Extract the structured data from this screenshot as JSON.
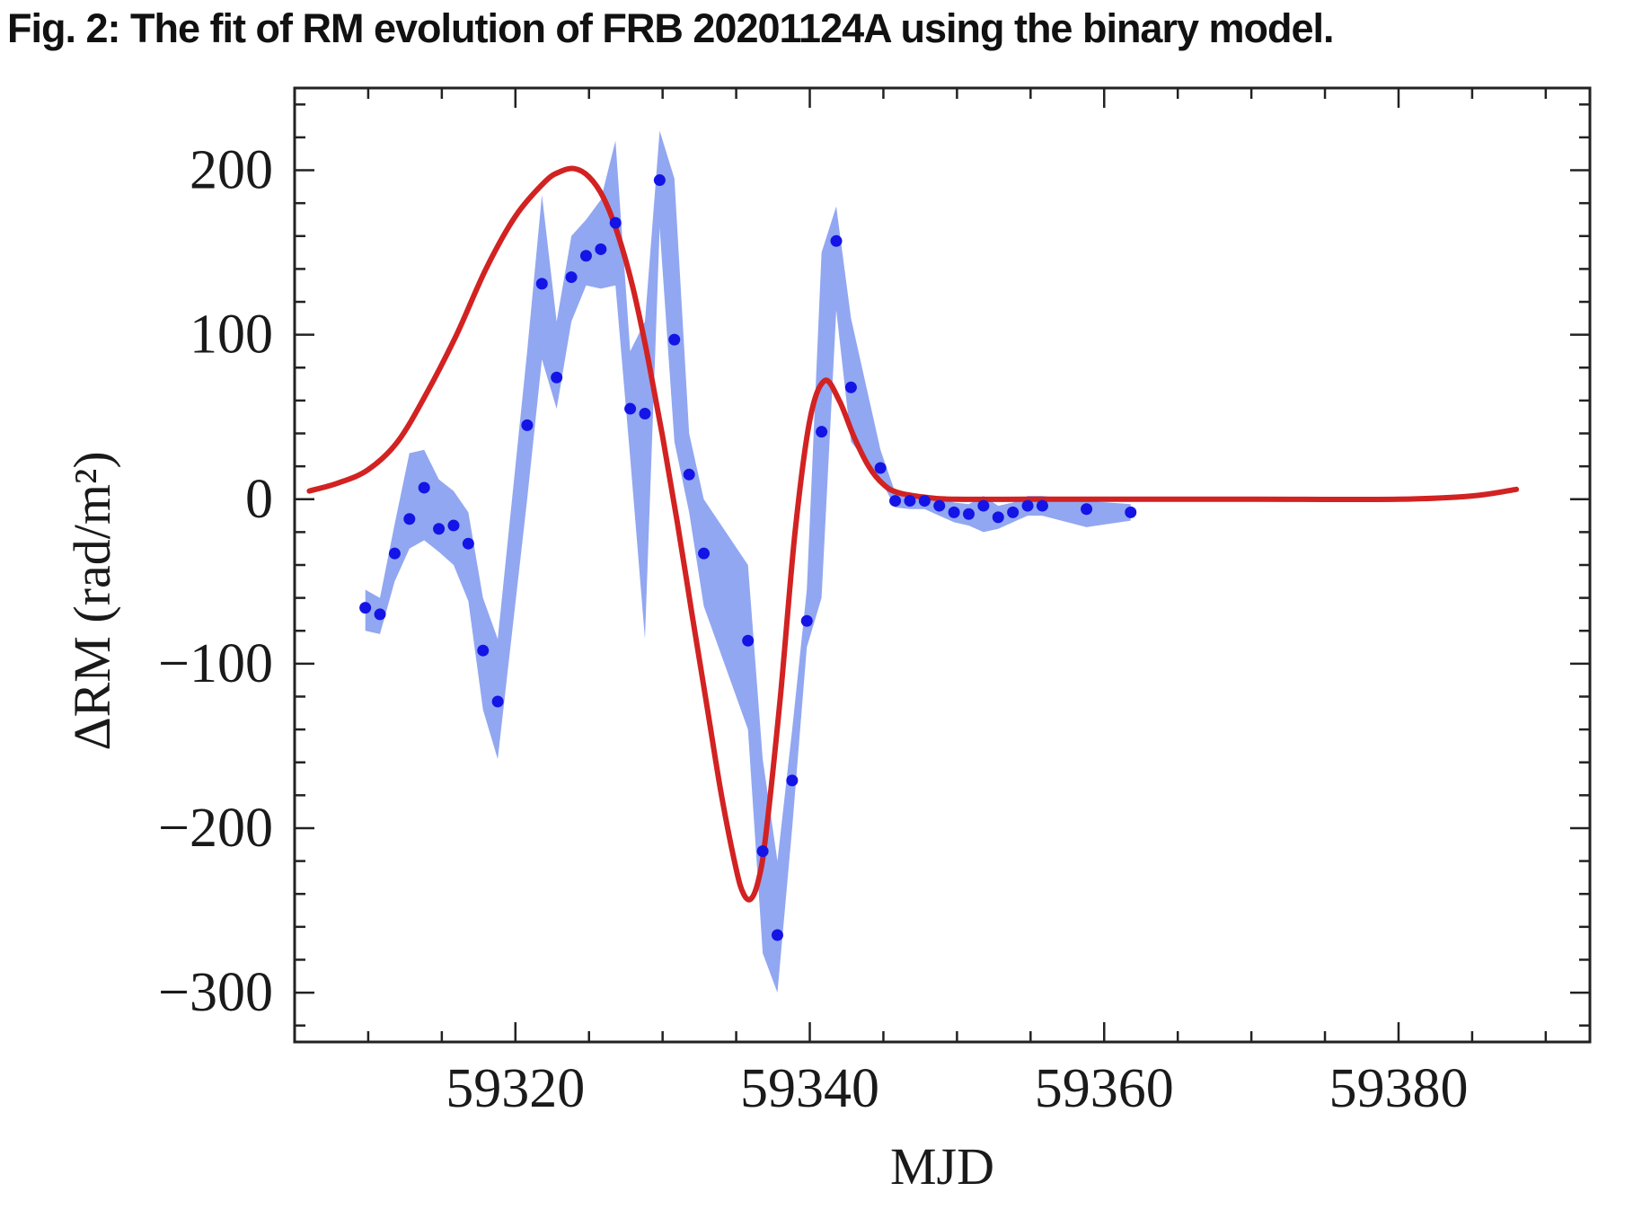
{
  "caption": "Fig. 2: The fit of RM evolution of FRB 20201124A using the binary model.",
  "colors": {
    "points": "#1414e6",
    "band": "#8ca2f0",
    "fit": "#d22222",
    "frame": "#222222",
    "caption": "#111111"
  },
  "chart_data": {
    "type": "scatter",
    "title": "",
    "xlabel": "MJD",
    "ylabel": "ΔRM (rad/m²)",
    "xlim": [
      59305,
      59393
    ],
    "ylim": [
      -330,
      250
    ],
    "xticks": [
      59320,
      59340,
      59360,
      59380
    ],
    "yticks": [
      200,
      100,
      0,
      -100,
      -200,
      -300
    ],
    "xtick_labels": [
      "59320",
      "59340",
      "59360",
      "59380"
    ],
    "ytick_labels": [
      "200",
      "100",
      "0",
      "−100",
      "−200",
      "−300"
    ],
    "grid": false,
    "legend": "none",
    "series": [
      {
        "kind": "points",
        "x": [
          59309.8,
          59310.8,
          59311.8,
          59312.8,
          59313.8,
          59314.8,
          59315.8,
          59316.8,
          59317.8,
          59318.8,
          59320.8,
          59321.8,
          59322.8,
          59323.8,
          59324.8,
          59325.8,
          59326.8,
          59327.8,
          59328.8,
          59329.8,
          59330.8,
          59331.8,
          59332.8,
          59335.8,
          59336.8,
          59337.8,
          59338.8,
          59339.8,
          59340.8,
          59341.8,
          59342.8,
          59344.8,
          59345.8,
          59346.8,
          59347.8,
          59348.8,
          59349.8,
          59350.8,
          59351.8,
          59352.8,
          59353.8,
          59354.8,
          59355.8,
          59358.8,
          59361.8
        ],
        "y": [
          -66,
          -70,
          -33,
          -12,
          7,
          -18,
          -16,
          -27,
          -92,
          -123,
          45,
          131,
          74,
          135,
          148,
          152,
          168,
          55,
          52,
          194,
          97,
          15,
          -33,
          -86,
          -214,
          -265,
          -171,
          -74,
          41,
          157,
          68,
          19,
          -1,
          -1,
          -1,
          -4,
          -8,
          -9,
          -4,
          -11,
          -8,
          -4,
          -4,
          -6,
          -8
        ]
      },
      {
        "kind": "band",
        "x": [
          59309.8,
          59310.8,
          59311.8,
          59312.8,
          59313.8,
          59314.8,
          59315.8,
          59316.8,
          59317.8,
          59318.8,
          59320.8,
          59321.8,
          59322.8,
          59323.8,
          59324.8,
          59325.8,
          59326.8,
          59327.8,
          59328.8,
          59329.8,
          59330.8,
          59331.8,
          59332.8,
          59335.8,
          59336.8,
          59337.8,
          59338.8,
          59339.8,
          59340.8,
          59341.8,
          59342.8,
          59344.8,
          59345.8,
          59346.8,
          59347.8,
          59348.8,
          59349.8,
          59350.8,
          59351.8,
          59352.8,
          59353.8,
          59354.8,
          59355.8,
          59358.8,
          59361.8
        ],
        "upper": [
          -55,
          -60,
          -15,
          28,
          30,
          12,
          5,
          -8,
          -60,
          -85,
          90,
          185,
          108,
          160,
          170,
          182,
          218,
          90,
          108,
          224,
          195,
          40,
          0,
          -40,
          -158,
          -220,
          -140,
          -55,
          150,
          178,
          110,
          30,
          4,
          3,
          2,
          0,
          -2,
          -3,
          2,
          -4,
          -2,
          2,
          2,
          -1,
          -3
        ],
        "lower": [
          -80,
          -82,
          -50,
          -30,
          -25,
          -32,
          -40,
          -62,
          -128,
          -158,
          0,
          85,
          55,
          108,
          130,
          128,
          130,
          25,
          -85,
          165,
          35,
          -8,
          -65,
          -140,
          -276,
          -300,
          -200,
          -90,
          -60,
          115,
          35,
          12,
          -5,
          -6,
          -6,
          -10,
          -14,
          -16,
          -20,
          -18,
          -14,
          -10,
          -10,
          -17,
          -13
        ]
      },
      {
        "kind": "line",
        "name": "",
        "x": [
          59306,
          59308,
          59310,
          59312,
          59314,
          59316,
          59318,
          59320,
          59322,
          59323,
          59324,
          59325,
          59326,
          59327,
          59328,
          59329,
          59330,
          59331,
          59332,
          59333,
          59334,
          59335,
          59335.5,
          59336,
          59336.5,
          59337,
          59338,
          59339,
          59340,
          59341,
          59342,
          59343,
          59344,
          59345,
          59346,
          59348,
          59350,
          59355,
          59360,
          59370,
          59380,
          59385,
          59388
        ],
        "y": [
          5,
          10,
          18,
          35,
          65,
          100,
          140,
          172,
          193,
          199,
          201,
          196,
          183,
          160,
          128,
          86,
          38,
          -14,
          -70,
          -125,
          -180,
          -225,
          -240,
          -243,
          -232,
          -205,
          -120,
          -20,
          48,
          72,
          60,
          38,
          20,
          9,
          4,
          1,
          0,
          0,
          0,
          0,
          0,
          2,
          6
        ]
      }
    ]
  }
}
